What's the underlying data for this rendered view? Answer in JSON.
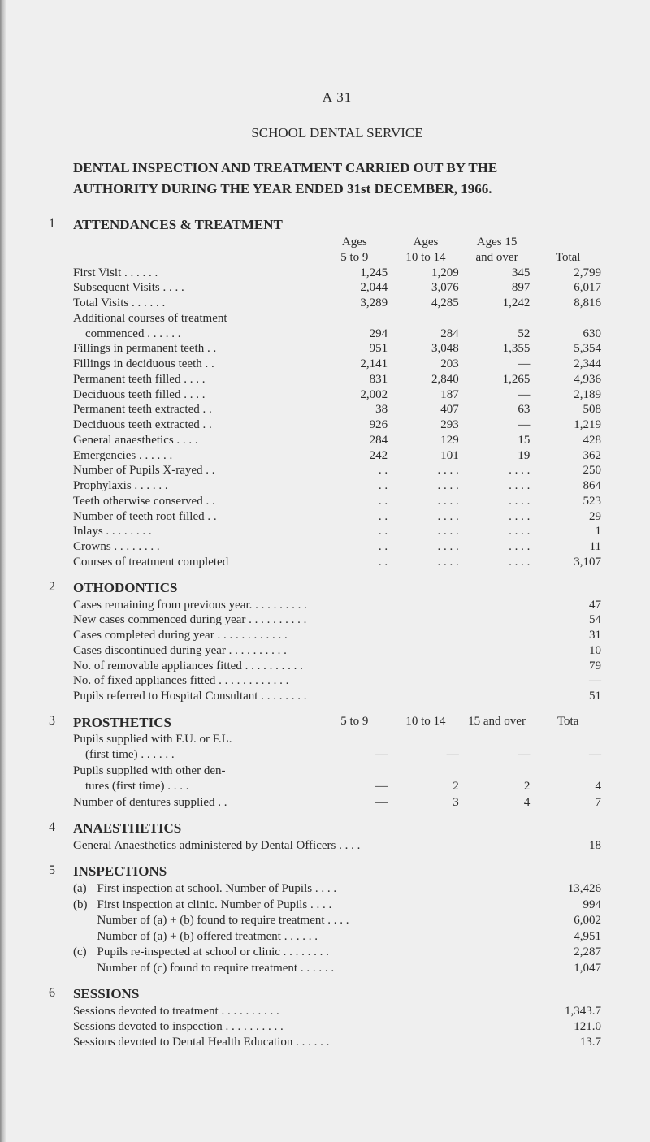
{
  "page_num_label": "A 31",
  "main_title": "SCHOOL DENTAL SERVICE",
  "sub_title_line1": "DENTAL INSPECTION AND TREATMENT CARRIED OUT BY THE",
  "sub_title_line2": "AUTHORITY DURING THE YEAR ENDED 31st DECEMBER, 1966.",
  "s1": {
    "num": "1",
    "head": "ATTENDANCES & TREATMENT",
    "col_head": {
      "c1a": "Ages",
      "c1b": "5 to 9",
      "c2a": "Ages",
      "c2b": "10 to 14",
      "c3a": "Ages 15",
      "c3b": "and over",
      "c4b": "Total"
    },
    "rows": [
      {
        "label": "First Visit   . .    . .    . .",
        "v": [
          "1,245",
          "1,209",
          "345",
          "2,799"
        ]
      },
      {
        "label": "Subsequent Visits        . .    . .",
        "v": [
          "2,044",
          "3,076",
          "897",
          "6,017"
        ]
      },
      {
        "label": "Total Visits       . .    . .    . .",
        "v": [
          "3,289",
          "4,285",
          "1,242",
          "8,816"
        ]
      },
      {
        "label": "Additional courses of treatment",
        "v": [
          "",
          "",
          "",
          ""
        ]
      },
      {
        "label": " commenced   . .    . .    . .",
        "v": [
          "294",
          "284",
          "52",
          "630"
        ]
      },
      {
        "label": "Fillings in permanent teeth    . .",
        "v": [
          "951",
          "3,048",
          "1,355",
          "5,354"
        ]
      },
      {
        "label": "Fillings in deciduous teeth     . .",
        "v": [
          "2,141",
          "203",
          "—",
          "2,344"
        ]
      },
      {
        "label": "Permanent teeth filled . .     . .",
        "v": [
          "831",
          "2,840",
          "1,265",
          "4,936"
        ]
      },
      {
        "label": "Deciduous teeth filled . .    . .",
        "v": [
          "2,002",
          "187",
          "—",
          "2,189"
        ]
      },
      {
        "label": "Permanent teeth extracted     . .",
        "v": [
          "38",
          "407",
          "63",
          "508"
        ]
      },
      {
        "label": "Deciduous teeth extracted     . .",
        "v": [
          "926",
          "293",
          "—",
          "1,219"
        ]
      },
      {
        "label": "General anaesthetics    . .    . .",
        "v": [
          "284",
          "129",
          "15",
          "428"
        ]
      },
      {
        "label": "Emergencies        . .    . .    . .",
        "v": [
          "242",
          "101",
          "19",
          "362"
        ]
      },
      {
        "label": "Number of Pupils X-rayed    . .",
        "v": [
          ". .",
          ". .    . .",
          ". .    . .",
          "250"
        ]
      },
      {
        "label": "Prophylaxis       . .     . .    . .",
        "v": [
          ". .",
          ". .    . .",
          ". .    . .",
          "864"
        ]
      },
      {
        "label": "Teeth otherwise conserved     . .",
        "v": [
          ". .",
          ". .    . .",
          ". .    . .",
          "523"
        ]
      },
      {
        "label": "Number of teeth root filled . .",
        "v": [
          ". .",
          ". .    . .",
          ". .    . .",
          "29"
        ]
      },
      {
        "label": "Inlays      . .     . .    . .     . .",
        "v": [
          ". .",
          ". .    . .",
          ". .    . .",
          "1"
        ]
      },
      {
        "label": "Crowns   . .      . .     . .     . .",
        "v": [
          ". .",
          ". .    . .",
          ". .    . .",
          "11"
        ]
      },
      {
        "label": "Courses of treatment completed",
        "v": [
          ". .",
          ". .    . .",
          ". .    . .",
          "3,107"
        ]
      }
    ]
  },
  "s2": {
    "num": "2",
    "head": "OTHODONTICS",
    "rows": [
      {
        "label": "Cases remaining from previous year. .    . .    . .     . .    . .",
        "v": "47"
      },
      {
        "label": "New cases commenced during year . .    . .    . .     . .    . .",
        "v": "54"
      },
      {
        "label": "Cases completed during year . .     . .    . .    . .     . .    . .",
        "v": "31"
      },
      {
        "label": "Cases discontinued during year       . .    . .    . .     . .    . .",
        "v": "10"
      },
      {
        "label": "No. of removable appliances fitted . .    . .    . .     . .    . .",
        "v": "79"
      },
      {
        "label": "No. of fixed appliances fitted . .     . .   . .    . .     . .    . .",
        "v": "—"
      },
      {
        "label": "Pupils referred to Hospital Consultant     . .    . .    . .     . .",
        "v": "51"
      }
    ]
  },
  "s3": {
    "num": "3",
    "head": "PROSTHETICS",
    "col_head": {
      "c1": "5 to 9",
      "c2": "10 to 14",
      "c3": "15 and over",
      "c4": "Tota"
    },
    "rows": [
      {
        "label": "Pupils supplied with F.U. or F.L.",
        "v": [
          "",
          "",
          "",
          ""
        ]
      },
      {
        "label": " (first time)     . .     . .     . .",
        "v": [
          "—",
          "—",
          "—",
          "—"
        ]
      },
      {
        "label": "Pupils supplied with other den-",
        "v": [
          "",
          "",
          "",
          ""
        ]
      },
      {
        "label": " tures (first time)      . .     . .",
        "v": [
          "—",
          "2",
          "2",
          "4"
        ]
      },
      {
        "label": "Number of dentures supplied . .",
        "v": [
          "—",
          "3",
          "4",
          "7"
        ]
      }
    ]
  },
  "s4": {
    "num": "4",
    "head": "ANAESTHETICS",
    "row": {
      "label": "General Anaesthetics administered by Dental Officers    . .     . .",
      "v": "18"
    }
  },
  "s5": {
    "num": "5",
    "head": "INSPECTIONS",
    "rows": [
      {
        "letter": "(a)",
        "label": "First inspection at school.  Number of Pupils         . .    . .",
        "v": "13,426"
      },
      {
        "letter": "(b)",
        "label": "First inspection at clinic.  Number of Pupils          . .    . .",
        "v": "994"
      },
      {
        "letter": "",
        "label": "Number of (a) + (b) found to require treatment  . .    . .",
        "v": "6,002"
      },
      {
        "letter": "",
        "label": "Number of (a) + (b) offered treatment          . .      . .    . .",
        "v": "4,951"
      },
      {
        "letter": "(c)",
        "label": "Pupils re-inspected at school or clinic . .      . .      . .    . .",
        "v": "2,287"
      },
      {
        "letter": "",
        "label": "Number of (c) found to require treatment   . .      . .    . .",
        "v": "1,047"
      }
    ]
  },
  "s6": {
    "num": "6",
    "head": "SESSIONS",
    "rows": [
      {
        "label": "Sessions devoted to treatment          . .    . .     . .    . .     . .",
        "v": "1,343.7"
      },
      {
        "label": "Sessions devoted to inspection         . .    . .     . .    . .     . .",
        "v": "121.0"
      },
      {
        "label": "Sessions devoted to Dental Health Education     . .    . .     . .",
        "v": "13.7"
      }
    ]
  }
}
